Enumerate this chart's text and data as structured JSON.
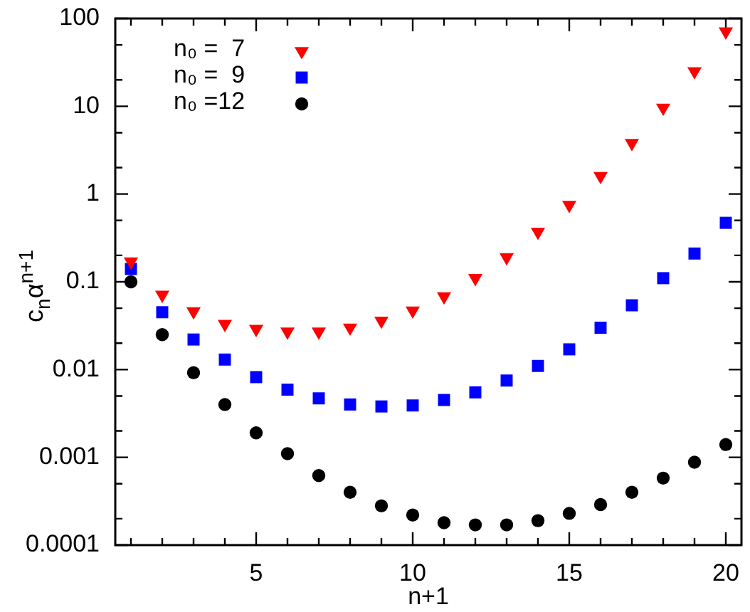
{
  "chart_data": {
    "type": "scatter",
    "xlabel": "n+1",
    "ylabel": "c$_{n}$α$^{n+1}$",
    "x": [
      1,
      2,
      3,
      4,
      5,
      6,
      7,
      8,
      9,
      10,
      11,
      12,
      13,
      14,
      15,
      16,
      17,
      18,
      19,
      20
    ],
    "series": [
      {
        "name": "n₀ =  7",
        "color": "#ff0000",
        "marker": "triangle",
        "values": [
          0.17,
          0.071,
          0.046,
          0.033,
          0.029,
          0.027,
          0.027,
          0.03,
          0.036,
          0.047,
          0.068,
          0.11,
          0.19,
          0.37,
          0.75,
          1.6,
          3.8,
          9.6,
          25,
          71
        ]
      },
      {
        "name": "n₀ =  9",
        "color": "#0000ff",
        "marker": "square",
        "values": [
          0.14,
          0.045,
          0.022,
          0.013,
          0.0082,
          0.0059,
          0.0047,
          0.004,
          0.0038,
          0.0039,
          0.0045,
          0.0055,
          0.0075,
          0.011,
          0.017,
          0.03,
          0.054,
          0.11,
          0.21,
          0.47
        ]
      },
      {
        "name": "n₀ =12",
        "color": "#000000",
        "marker": "circle",
        "values": [
          0.1,
          0.025,
          0.0092,
          0.004,
          0.0019,
          0.0011,
          0.00062,
          0.0004,
          0.00028,
          0.00022,
          0.00018,
          0.00017,
          0.00017,
          0.00019,
          0.00023,
          0.00029,
          0.0004,
          0.00058,
          0.00088,
          0.0014
        ]
      }
    ],
    "xlim": [
      0.5,
      20.5
    ],
    "xticks": [
      {
        "value": 1,
        "label": null
      },
      {
        "value": 2,
        "label": null
      },
      {
        "value": 3,
        "label": null
      },
      {
        "value": 4,
        "label": null
      },
      5,
      {
        "value": 6,
        "label": null
      },
      {
        "value": 7,
        "label": null
      },
      {
        "value": 8,
        "label": null
      },
      {
        "value": 9,
        "label": null
      },
      10,
      {
        "value": 11,
        "label": null
      },
      {
        "value": 12,
        "label": null
      },
      {
        "value": 13,
        "label": null
      },
      {
        "value": 14,
        "label": null
      },
      15,
      {
        "value": 16,
        "label": null
      },
      {
        "value": 17,
        "label": null
      },
      {
        "value": 18,
        "label": null
      },
      {
        "value": 19,
        "label": null
      },
      20
    ],
    "ylim": [
      0.0001,
      100
    ],
    "yticks": [
      0.0001,
      {
        "value": 0.0002,
        "label": null
      },
      {
        "value": 0.0005,
        "label": null
      },
      0.001,
      {
        "value": 0.002,
        "label": null
      },
      {
        "value": 0.005,
        "label": null
      },
      0.01,
      {
        "value": 0.02,
        "label": null
      },
      {
        "value": 0.05,
        "label": null
      },
      0.1,
      {
        "value": 0.2,
        "label": null
      },
      {
        "value": 0.5,
        "label": null
      },
      1,
      {
        "value": 2,
        "label": null
      },
      {
        "value": 5,
        "label": null
      },
      10,
      {
        "value": 20,
        "label": null
      },
      {
        "value": 50,
        "label": null
      },
      100
    ],
    "log": "y",
    "legend": "top left"
  }
}
